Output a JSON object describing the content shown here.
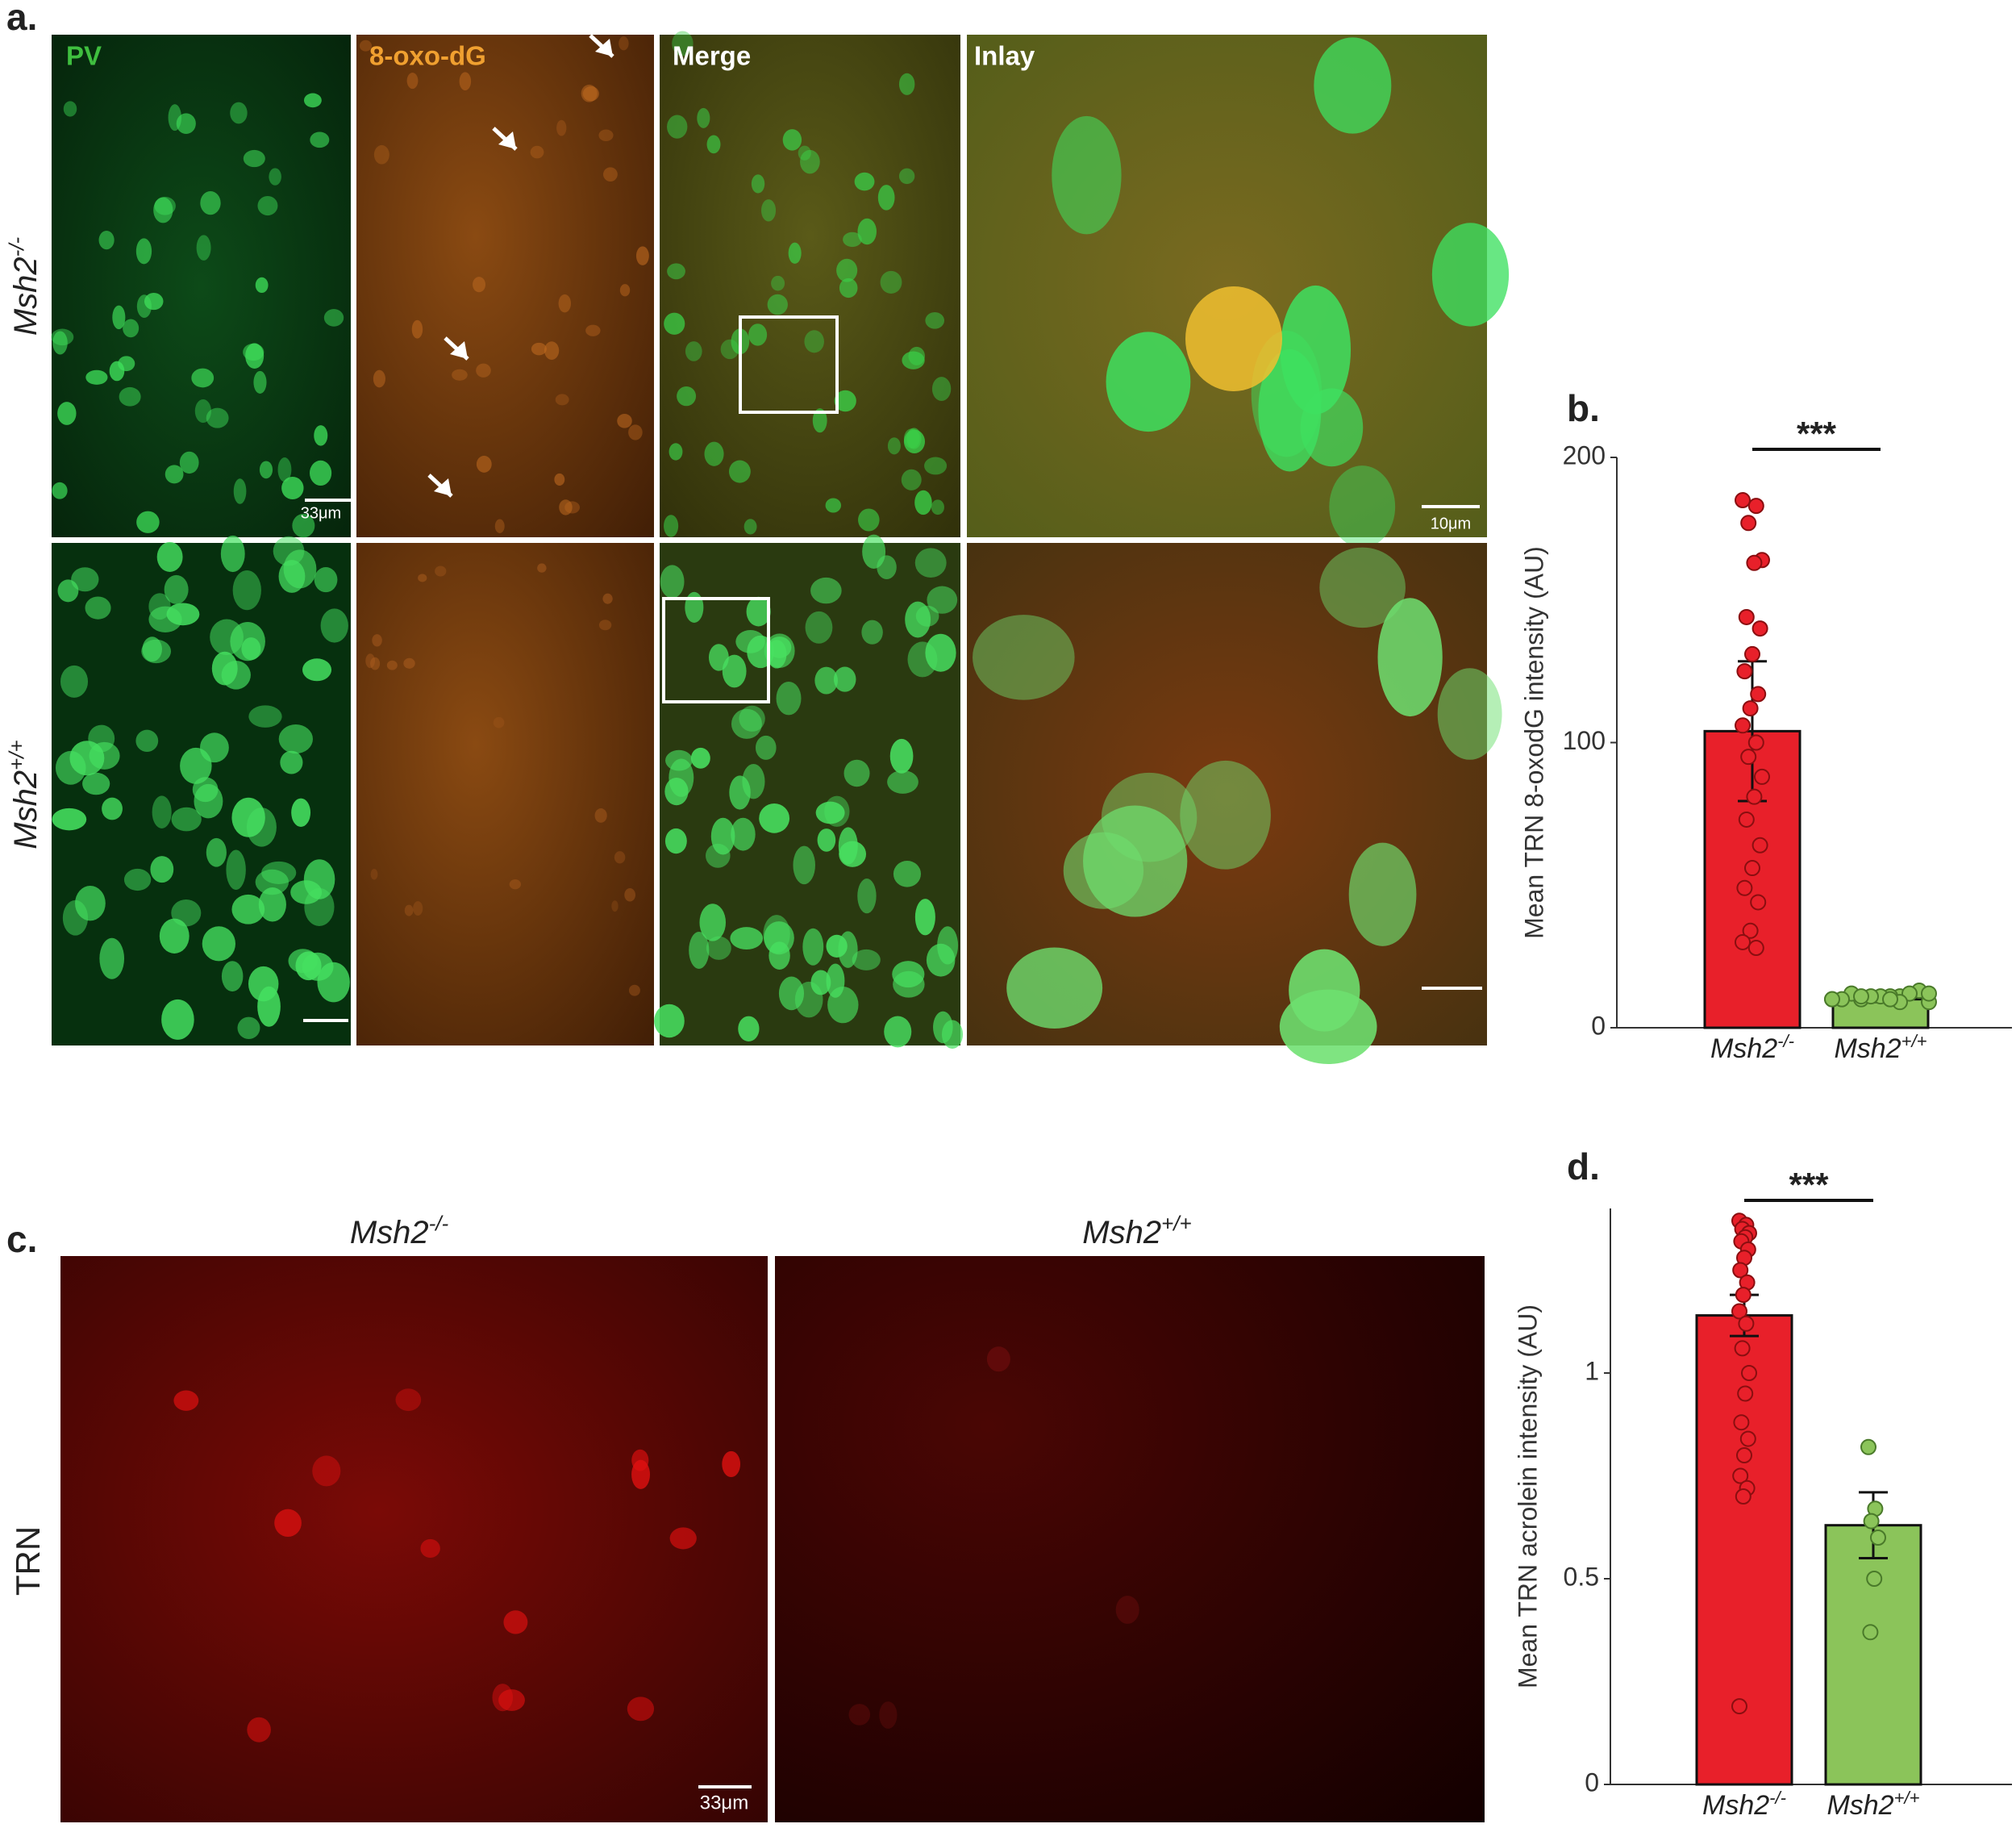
{
  "figure": {
    "panel_a": "a.",
    "panel_c": "c.",
    "channels": [
      "PV",
      "8-oxo-dG",
      "Merge",
      "Inlay"
    ],
    "rows": [
      "Msh2-/-",
      "Msh2+/+"
    ],
    "scale_a": "33μm",
    "scale_inlay": "10μm",
    "columns_c": [
      "Msh2-/-",
      "Msh2+/+"
    ],
    "row_c": "TRN",
    "scale_c": "33μm"
  },
  "chart_data": [
    {
      "type": "bar",
      "panel_label": "b.",
      "annotation": "***",
      "y_label": "Mean TRN 8-oxodG intensity (AU)",
      "categories": [
        "Msh2-/-",
        "Msh2+/+"
      ],
      "values": [
        104,
        10
      ],
      "errors": [
        24.5,
        1
      ],
      "colors": [
        "#e8202a",
        "#8bc45a"
      ],
      "points": [
        [
          185,
          183,
          177,
          164,
          163,
          144,
          140,
          131,
          125,
          117,
          112,
          106,
          100,
          95,
          88,
          81,
          73,
          64,
          56,
          49,
          44,
          34,
          30,
          28
        ],
        [
          10,
          11,
          10,
          9,
          11,
          12,
          13,
          11,
          10,
          12,
          11,
          10,
          9,
          11,
          12,
          10
        ]
      ],
      "ylim": [
        0,
        200
      ],
      "yticks": [
        0,
        100,
        200
      ]
    },
    {
      "type": "bar",
      "panel_label": "d.",
      "annotation": "***",
      "y_label": "Mean TRN acrolein intensity (AU)",
      "categories": [
        "Msh2-/-",
        "Msh2+/+"
      ],
      "values": [
        1.14,
        0.63
      ],
      "errors": [
        0.05,
        0.08
      ],
      "colors": [
        "#e8202a",
        "#8bc45a"
      ],
      "points": [
        [
          1.37,
          1.36,
          1.35,
          1.34,
          1.33,
          1.32,
          1.3,
          1.28,
          1.25,
          1.22,
          1.19,
          1.15,
          1.12,
          1.06,
          1.0,
          0.95,
          0.88,
          0.84,
          0.8,
          0.75,
          0.72,
          0.7,
          0.19
        ],
        [
          0.82,
          0.67,
          0.64,
          0.6,
          0.5,
          0.37
        ]
      ],
      "ylim": [
        0,
        1.4
      ],
      "yticks": [
        0,
        0.5,
        1
      ]
    }
  ]
}
